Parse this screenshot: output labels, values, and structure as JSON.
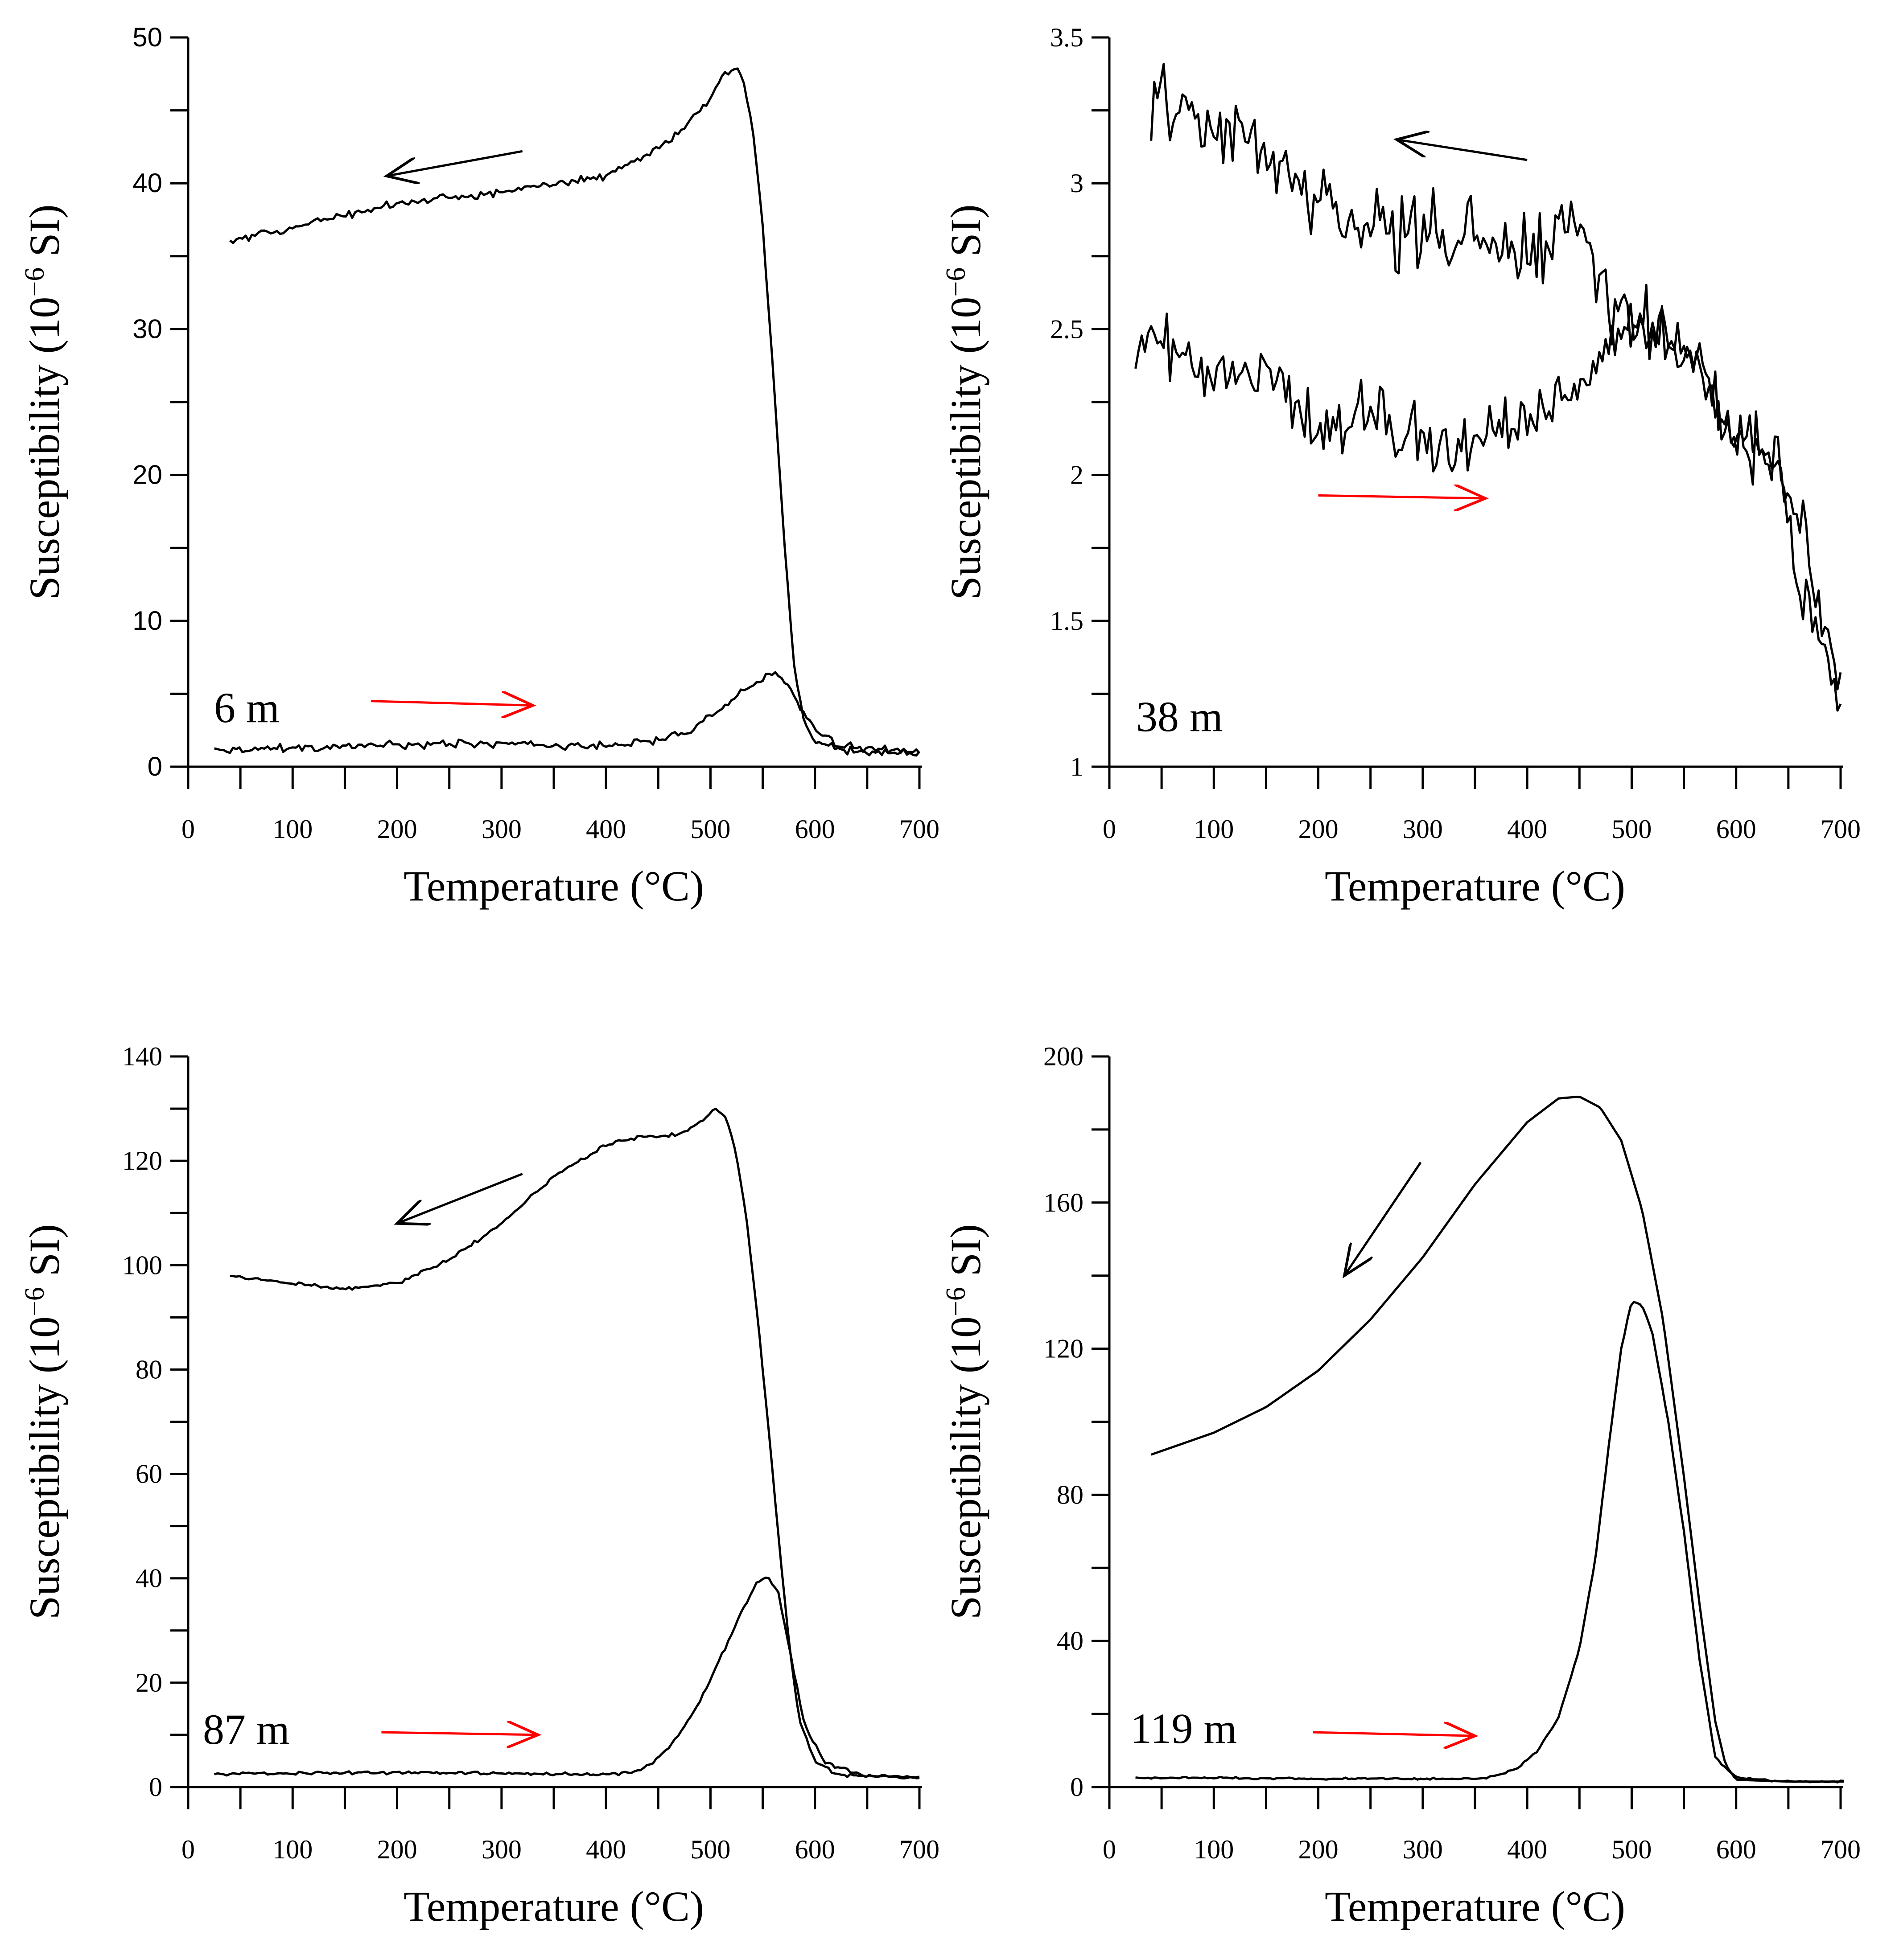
{
  "colors": {
    "curve": "#000000",
    "heating_arrow": "#ff0000",
    "cooling_arrow": "#000000"
  },
  "chart_data": [
    {
      "type": "line",
      "panel_label": "6 m",
      "xlabel": "Temperature (°C)",
      "ylabel_main": "Susceptibility (10",
      "ylabel_exp": "−6",
      "ylabel_unit": " SI)",
      "xlim": [
        0,
        700
      ],
      "ylim": [
        0,
        50
      ],
      "x_ticks": [
        0,
        100,
        200,
        300,
        400,
        500,
        600,
        700
      ],
      "x_tick_labels": [
        "0",
        "100",
        "200",
        "300",
        "400",
        "500",
        "600",
        "700"
      ],
      "y_ticks": [
        0,
        10,
        20,
        30,
        40,
        50
      ],
      "y_tick_labels": [
        "0",
        "10",
        "20",
        "30",
        "40",
        "50"
      ],
      "y_minor_ticks": [
        5,
        15,
        25,
        35,
        45
      ],
      "x_minor_ticks": [
        50,
        150,
        250,
        350,
        450,
        550,
        650
      ],
      "arrows": [
        {
          "direction": "cooling",
          "from": [
            320,
            42.2
          ],
          "to": [
            190,
            40.5
          ]
        },
        {
          "direction": "heating",
          "from": [
            175,
            4.5
          ],
          "to": [
            330,
            4.2
          ]
        }
      ],
      "series": [
        {
          "name": "heating",
          "noise": 0.2,
          "x": [
            25,
            100,
            200,
            300,
            400,
            450,
            480,
            500,
            520,
            540,
            555,
            565,
            575,
            585,
            600,
            620,
            650,
            700
          ],
          "y": [
            1.2,
            1.3,
            1.5,
            1.6,
            1.4,
            1.8,
            2.5,
            3.5,
            4.5,
            5.6,
            6.4,
            6.3,
            5.5,
            4.2,
            2.5,
            1.5,
            1.2,
            1.0
          ]
        },
        {
          "name": "cooling",
          "noise": 0.2,
          "x": [
            40,
            100,
            200,
            300,
            400,
            440,
            470,
            490,
            505,
            515,
            525,
            530,
            540,
            550,
            560,
            570,
            580,
            590,
            600,
            620,
            650,
            700
          ],
          "y": [
            36.0,
            37.0,
            38.6,
            39.4,
            40.5,
            42.0,
            43.5,
            45.0,
            46.5,
            47.6,
            47.9,
            47.6,
            44.0,
            37.0,
            27.0,
            16.0,
            7.0,
            3.0,
            1.8,
            1.2,
            1.0,
            0.9
          ]
        }
      ]
    },
    {
      "type": "line",
      "panel_label": "38 m",
      "xlabel": "Temperature (°C)",
      "ylabel_main": "Susceptibility (10",
      "ylabel_exp": "−6",
      "ylabel_unit": " SI)",
      "xlim": [
        0,
        700
      ],
      "ylim": [
        1,
        3.5
      ],
      "x_ticks": [
        0,
        100,
        200,
        300,
        400,
        500,
        600,
        700
      ],
      "x_tick_labels": [
        "0",
        "100",
        "200",
        "300",
        "400",
        "500",
        "600",
        "700"
      ],
      "y_ticks": [
        1,
        1.5,
        2,
        2.5,
        3,
        3.5
      ],
      "y_tick_labels": [
        "1",
        "1.5",
        "2",
        "2.5",
        "3",
        "3.5"
      ],
      "y_minor_ticks": [
        1.25,
        1.75,
        2.25,
        2.75,
        3.25
      ],
      "x_minor_ticks": [
        50,
        150,
        250,
        350,
        450,
        550,
        650
      ],
      "arrows": [
        {
          "direction": "cooling",
          "from": [
            400,
            3.08
          ],
          "to": [
            275,
            3.15
          ]
        },
        {
          "direction": "heating",
          "from": [
            200,
            1.93
          ],
          "to": [
            360,
            1.92
          ]
        }
      ],
      "series": [
        {
          "name": "heating",
          "noise": 0.08,
          "x": [
            25,
            50,
            100,
            150,
            200,
            250,
            300,
            350,
            400,
            450,
            480,
            500,
            550,
            600,
            640,
            660,
            680,
            700
          ],
          "y": [
            2.45,
            2.45,
            2.3,
            2.4,
            2.15,
            2.22,
            2.12,
            2.12,
            2.2,
            2.3,
            2.45,
            2.5,
            2.45,
            2.1,
            2.1,
            1.6,
            1.45,
            1.2
          ]
        },
        {
          "name": "cooling",
          "noise": 0.11,
          "x": [
            40,
            100,
            150,
            200,
            250,
            300,
            350,
            400,
            450,
            480,
            500,
            550,
            600,
            640,
            660,
            680,
            700
          ],
          "y": [
            3.3,
            3.2,
            3.1,
            2.95,
            2.85,
            2.85,
            2.8,
            2.75,
            2.85,
            2.6,
            2.5,
            2.45,
            2.15,
            2.05,
            1.85,
            1.5,
            1.3
          ]
        }
      ]
    },
    {
      "type": "line",
      "panel_label": "87 m",
      "xlabel": "Temperature (°C)",
      "ylabel_main": "Susceptibility (10",
      "ylabel_exp": "−6",
      "ylabel_unit": " SI)",
      "xlim": [
        0,
        700
      ],
      "ylim": [
        0,
        140
      ],
      "x_ticks": [
        0,
        100,
        200,
        300,
        400,
        500,
        600,
        700
      ],
      "x_tick_labels": [
        "0",
        "100",
        "200",
        "300",
        "400",
        "500",
        "600",
        "700"
      ],
      "y_ticks": [
        0,
        20,
        40,
        60,
        80,
        100,
        120,
        140
      ],
      "y_tick_labels": [
        "0",
        "20",
        "40",
        "60",
        "80",
        "100",
        "120",
        "140"
      ],
      "y_minor_ticks": [
        10,
        30,
        50,
        70,
        90,
        110,
        130
      ],
      "x_minor_ticks": [
        50,
        150,
        250,
        350,
        450,
        550,
        650
      ],
      "arrows": [
        {
          "direction": "cooling",
          "from": [
            320,
            117.5
          ],
          "to": [
            200,
            108
          ]
        },
        {
          "direction": "heating",
          "from": [
            185,
            10.5
          ],
          "to": [
            335,
            10
          ]
        }
      ],
      "series": [
        {
          "name": "heating",
          "noise": 0.25,
          "x": [
            25,
            100,
            200,
            300,
            400,
            430,
            450,
            470,
            490,
            510,
            530,
            545,
            555,
            565,
            575,
            590,
            610,
            650,
            700
          ],
          "y": [
            2.5,
            2.6,
            2.8,
            2.5,
            2.4,
            3.0,
            5.5,
            10.0,
            16.5,
            25.0,
            33.5,
            39.5,
            40.3,
            37.0,
            27.0,
            12.0,
            4.5,
            2.2,
            1.8
          ]
        },
        {
          "name": "cooling",
          "noise": 0.25,
          "x": [
            40,
            100,
            150,
            200,
            250,
            300,
            350,
            400,
            430,
            470,
            490,
            505,
            515,
            525,
            535,
            545,
            555,
            565,
            575,
            585,
            600,
            620,
            650,
            700
          ],
          "y": [
            98.0,
            96.5,
            95.5,
            96.5,
            101.0,
            108.0,
            117.0,
            123.0,
            124.5,
            125.0,
            127.5,
            130.0,
            128.5,
            121.0,
            108.0,
            90.0,
            70.0,
            48.0,
            28.0,
            13.0,
            5.0,
            2.5,
            2.0,
            1.8
          ]
        }
      ]
    },
    {
      "type": "line",
      "panel_label": "119 m",
      "xlabel": "Temperature (°C)",
      "ylabel_main": "Susceptibility (10",
      "ylabel_exp": "−6",
      "ylabel_unit": " SI)",
      "xlim": [
        0,
        700
      ],
      "ylim": [
        0,
        200
      ],
      "x_ticks": [
        0,
        100,
        200,
        300,
        400,
        500,
        600,
        700
      ],
      "x_tick_labels": [
        "0",
        "100",
        "200",
        "300",
        "400",
        "500",
        "600",
        "700"
      ],
      "y_ticks": [
        0,
        40,
        80,
        120,
        160,
        200
      ],
      "y_tick_labels": [
        "0",
        "40",
        "80",
        "120",
        "160",
        "200"
      ],
      "y_minor_ticks": [
        20,
        60,
        100,
        140,
        180
      ],
      "x_minor_ticks": [
        50,
        150,
        250,
        350,
        450,
        550,
        650
      ],
      "arrows": [
        {
          "direction": "cooling",
          "from": [
            298,
            171
          ],
          "to": [
            225,
            140
          ]
        },
        {
          "direction": "heating",
          "from": [
            195,
            15
          ],
          "to": [
            350,
            14
          ]
        }
      ],
      "series": [
        {
          "name": "heating",
          "noise": 0.2,
          "x": [
            25,
            100,
            200,
            300,
            360,
            390,
            410,
            430,
            450,
            465,
            480,
            490,
            500,
            510,
            520,
            535,
            550,
            565,
            580,
            600,
            650,
            705
          ],
          "y": [
            2.5,
            2.5,
            2.3,
            2.2,
            2.3,
            5.0,
            10.0,
            19.0,
            38.0,
            62.0,
            98.0,
            120.0,
            133.0,
            132.0,
            124.0,
            100.0,
            70.0,
            35.0,
            8.0,
            2.5,
            1.5,
            1.5
          ]
        },
        {
          "name": "cooling",
          "noise": 0,
          "x": [
            40,
            100,
            150,
            200,
            250,
            300,
            350,
            400,
            430,
            450,
            470,
            490,
            510,
            530,
            550,
            565,
            580,
            590,
            600,
            650,
            705
          ],
          "y": [
            91.0,
            97.0,
            104.0,
            114.0,
            128.0,
            145.0,
            165.0,
            182.0,
            188.5,
            189.0,
            186.0,
            177.0,
            158.0,
            128.0,
            85.0,
            50.0,
            18.0,
            6.0,
            2.0,
            1.5,
            1.5
          ]
        }
      ]
    }
  ]
}
